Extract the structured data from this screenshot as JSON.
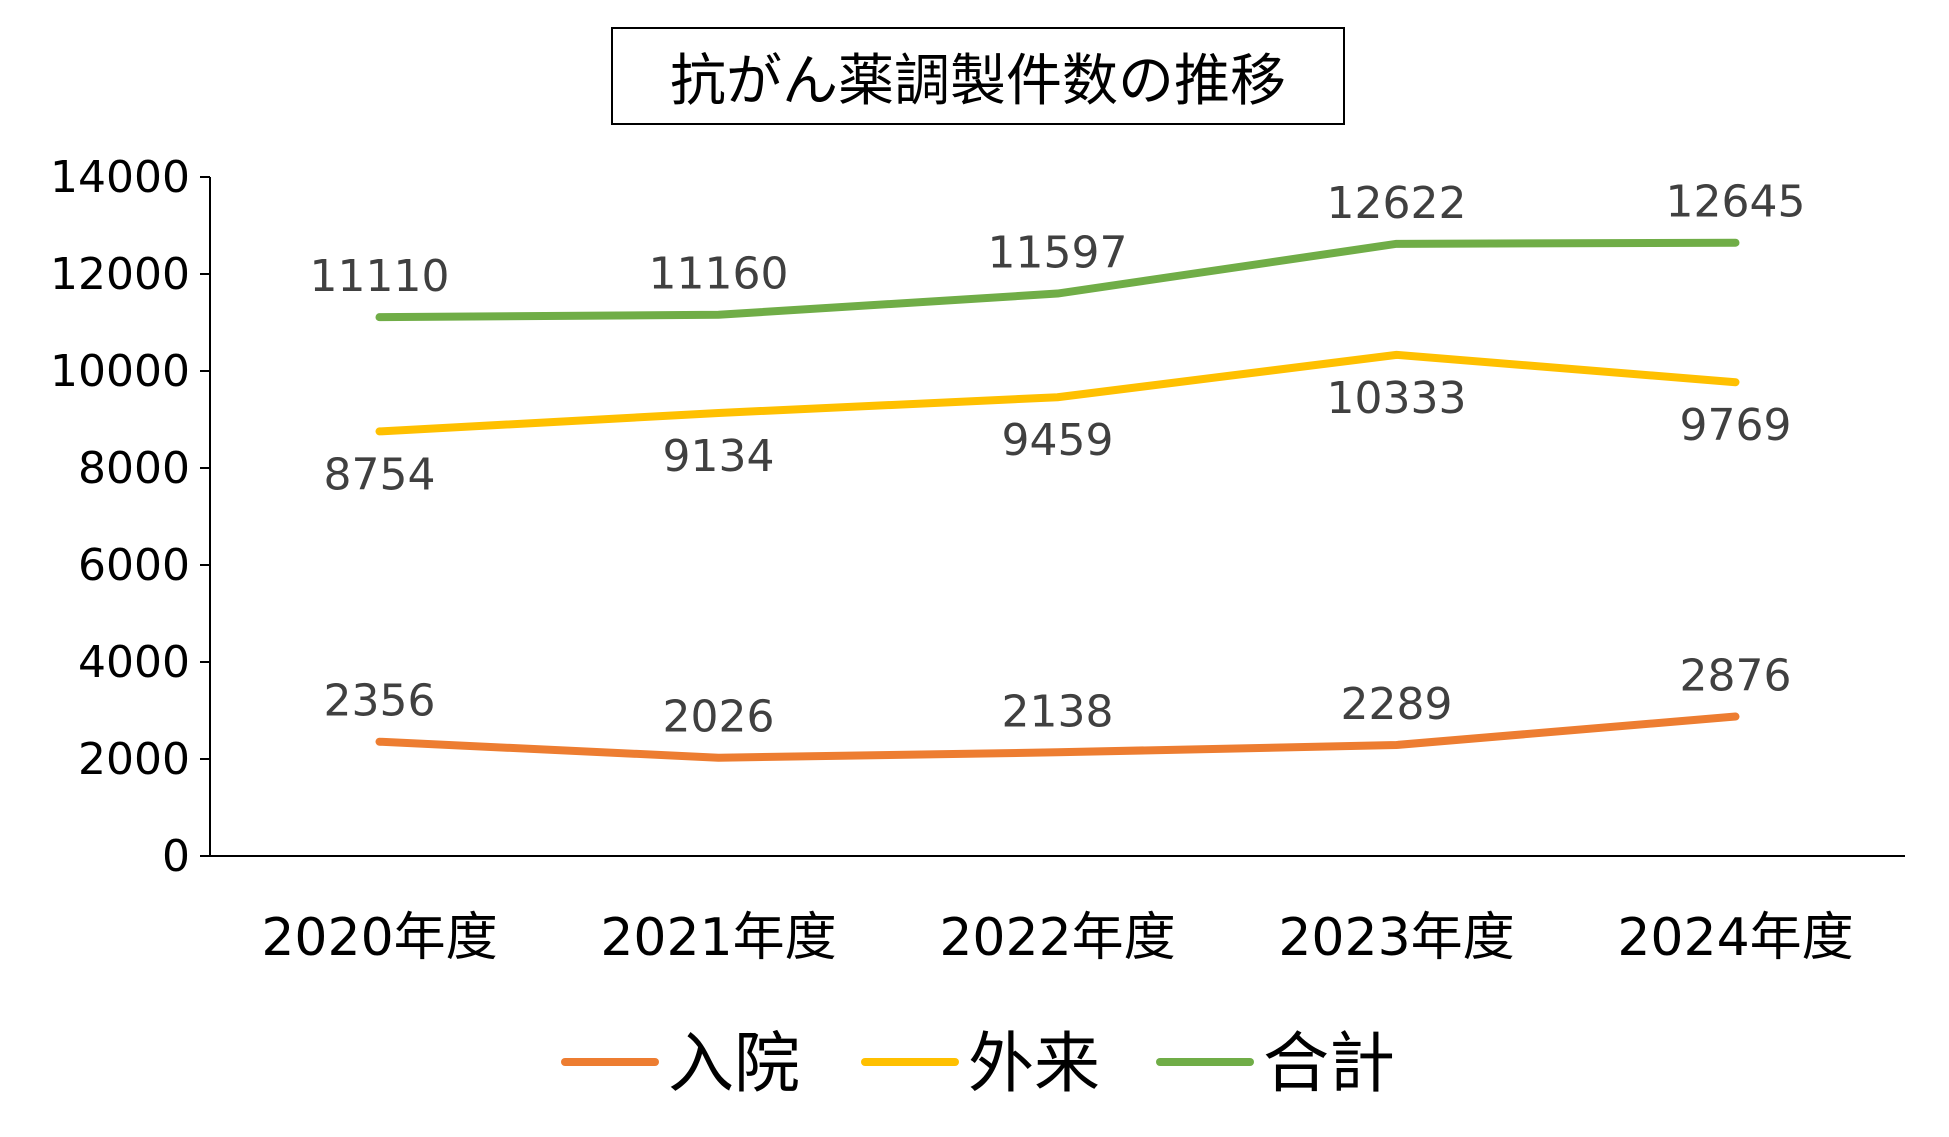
{
  "chart_data": {
    "type": "line",
    "title": "抗がん薬調製件数の推移",
    "xlabel": "",
    "ylabel": "",
    "categories": [
      "2020年度",
      "2021年度",
      "2022年度",
      "2023年度",
      "2024年度"
    ],
    "ylim": [
      0,
      14000
    ],
    "yticks": [
      0,
      2000,
      4000,
      6000,
      8000,
      10000,
      12000,
      14000
    ],
    "grid": false,
    "legend_position": "bottom",
    "series": [
      {
        "name": "入院",
        "color": "#ED7D31",
        "values": [
          2356,
          2026,
          2138,
          2289,
          2876
        ],
        "label_pos": "above"
      },
      {
        "name": "外来",
        "color": "#FFC000",
        "values": [
          8754,
          9134,
          9459,
          10333,
          9769
        ],
        "label_pos": "below"
      },
      {
        "name": "合計",
        "color": "#70AD47",
        "values": [
          11110,
          11160,
          11597,
          12622,
          12645
        ],
        "label_pos": "above"
      }
    ]
  }
}
